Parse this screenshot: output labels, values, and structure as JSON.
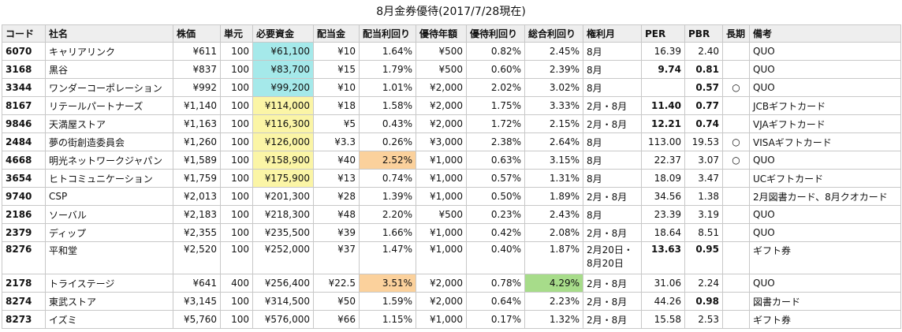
{
  "title": "8月金券優待(2017/7/28現在)",
  "headers": [
    "コード",
    "社名",
    "株価",
    "単元",
    "必要資金",
    "配当金",
    "配当利回り",
    "優待年額",
    "優待利回り",
    "総合利回り",
    "権利月",
    "PER",
    "PBR",
    "長期",
    "備考"
  ],
  "colors": {
    "cyan": "#a5e9ea",
    "yellow": "#fbf5a6",
    "orange": "#fbd19c",
    "green": "#a7dc8a",
    "header": "#eeeeee"
  },
  "rows": [
    {
      "code": "6070",
      "name": "キャリアリンク",
      "price": "¥611",
      "unit": "100",
      "funds": "¥61,100",
      "dividend": "¥10",
      "div_yield": "1.64%",
      "benefit": "¥500",
      "benefit_yield": "0.82%",
      "total_yield": "2.45%",
      "month": "8月",
      "per": "16.39",
      "pbr": "2.40",
      "longterm": "",
      "note": "QUO"
    },
    {
      "code": "3168",
      "name": "黒谷",
      "price": "¥837",
      "unit": "100",
      "funds": "¥83,700",
      "dividend": "¥15",
      "div_yield": "1.79%",
      "benefit": "¥500",
      "benefit_yield": "0.60%",
      "total_yield": "2.39%",
      "month": "8月",
      "per": "9.74",
      "pbr": "0.81",
      "longterm": "",
      "note": "QUO"
    },
    {
      "code": "3344",
      "name": "ワンダーコーポレーション",
      "price": "¥992",
      "unit": "100",
      "funds": "¥99,200",
      "dividend": "¥10",
      "div_yield": "1.01%",
      "benefit": "¥2,000",
      "benefit_yield": "2.02%",
      "total_yield": "3.02%",
      "month": "8月",
      "per": "",
      "pbr": "0.57",
      "longterm": "○",
      "note": "QUO"
    },
    {
      "code": "8167",
      "name": "リテールパートナーズ",
      "price": "¥1,140",
      "unit": "100",
      "funds": "¥114,000",
      "dividend": "¥18",
      "div_yield": "1.58%",
      "benefit": "¥2,000",
      "benefit_yield": "1.75%",
      "total_yield": "3.33%",
      "month": "2月・8月",
      "per": "11.40",
      "pbr": "0.77",
      "longterm": "",
      "note": "JCBギフトカード"
    },
    {
      "code": "9846",
      "name": "天満屋ストア",
      "price": "¥1,163",
      "unit": "100",
      "funds": "¥116,300",
      "dividend": "¥5",
      "div_yield": "0.43%",
      "benefit": "¥2,000",
      "benefit_yield": "1.72%",
      "total_yield": "2.15%",
      "month": "2月・8月",
      "per": "12.21",
      "pbr": "0.74",
      "longterm": "",
      "note": "VJAギフトカード"
    },
    {
      "code": "2484",
      "name": "夢の街創造委員会",
      "price": "¥1,260",
      "unit": "100",
      "funds": "¥126,000",
      "dividend": "¥3.3",
      "div_yield": "0.26%",
      "benefit": "¥3,000",
      "benefit_yield": "2.38%",
      "total_yield": "2.64%",
      "month": "8月",
      "per": "113.00",
      "pbr": "19.53",
      "longterm": "○",
      "note": "VISAギフトカード"
    },
    {
      "code": "4668",
      "name": "明光ネットワークジャパン",
      "price": "¥1,589",
      "unit": "100",
      "funds": "¥158,900",
      "dividend": "¥40",
      "div_yield": "2.52%",
      "benefit": "¥1,000",
      "benefit_yield": "0.63%",
      "total_yield": "3.15%",
      "month": "8月",
      "per": "22.37",
      "pbr": "3.07",
      "longterm": "○",
      "note": "QUO"
    },
    {
      "code": "3654",
      "name": "ヒトコミュニケーション",
      "price": "¥1,759",
      "unit": "100",
      "funds": "¥175,900",
      "dividend": "¥13",
      "div_yield": "0.74%",
      "benefit": "¥1,000",
      "benefit_yield": "0.57%",
      "total_yield": "1.31%",
      "month": "8月",
      "per": "18.09",
      "pbr": "3.47",
      "longterm": "",
      "note": "UCギフトカード"
    },
    {
      "code": "9740",
      "name": "CSP",
      "price": "¥2,013",
      "unit": "100",
      "funds": "¥201,300",
      "dividend": "¥28",
      "div_yield": "1.39%",
      "benefit": "¥1,000",
      "benefit_yield": "0.50%",
      "total_yield": "1.89%",
      "month": "2月・8月",
      "per": "34.56",
      "pbr": "1.38",
      "longterm": "",
      "note": "2月図書カード、8月クオカード"
    },
    {
      "code": "2186",
      "name": "ソーバル",
      "price": "¥2,183",
      "unit": "100",
      "funds": "¥218,300",
      "dividend": "¥48",
      "div_yield": "2.20%",
      "benefit": "¥500",
      "benefit_yield": "0.23%",
      "total_yield": "2.43%",
      "month": "8月",
      "per": "23.39",
      "pbr": "3.19",
      "longterm": "",
      "note": "QUO"
    },
    {
      "code": "2379",
      "name": "ディップ",
      "price": "¥2,355",
      "unit": "100",
      "funds": "¥235,500",
      "dividend": "¥39",
      "div_yield": "1.66%",
      "benefit": "¥1,000",
      "benefit_yield": "0.42%",
      "total_yield": "2.08%",
      "month": "2月・8月",
      "per": "18.64",
      "pbr": "8.51",
      "longterm": "",
      "note": "QUO"
    },
    {
      "code": "8276",
      "name": "平和堂",
      "price": "¥2,520",
      "unit": "100",
      "funds": "¥252,000",
      "dividend": "¥37",
      "div_yield": "1.47%",
      "benefit": "¥1,000",
      "benefit_yield": "0.40%",
      "total_yield": "1.87%",
      "month": "2月20日・8月20日",
      "per": "13.63",
      "pbr": "0.95",
      "longterm": "",
      "note": "ギフト券"
    },
    {
      "code": "2178",
      "name": "トライステージ",
      "price": "¥641",
      "unit": "400",
      "funds": "¥256,400",
      "dividend": "¥22.5",
      "div_yield": "3.51%",
      "benefit": "¥2,000",
      "benefit_yield": "0.78%",
      "total_yield": "4.29%",
      "month": "2月・8月",
      "per": "31.06",
      "pbr": "2.24",
      "longterm": "",
      "note": "QUO"
    },
    {
      "code": "8274",
      "name": "東武ストア",
      "price": "¥3,145",
      "unit": "100",
      "funds": "¥314,500",
      "dividend": "¥50",
      "div_yield": "1.59%",
      "benefit": "¥2,000",
      "benefit_yield": "0.64%",
      "total_yield": "2.23%",
      "month": "2月・8月",
      "per": "44.26",
      "pbr": "0.98",
      "longterm": "",
      "note": "図書カード"
    },
    {
      "code": "8273",
      "name": "イズミ",
      "price": "¥5,760",
      "unit": "100",
      "funds": "¥576,000",
      "dividend": "¥66",
      "div_yield": "1.15%",
      "benefit": "¥1,000",
      "benefit_yield": "0.17%",
      "total_yield": "1.32%",
      "month": "2月・8月",
      "per": "15.58",
      "pbr": "2.53",
      "longterm": "",
      "note": "ギフト券"
    }
  ]
}
